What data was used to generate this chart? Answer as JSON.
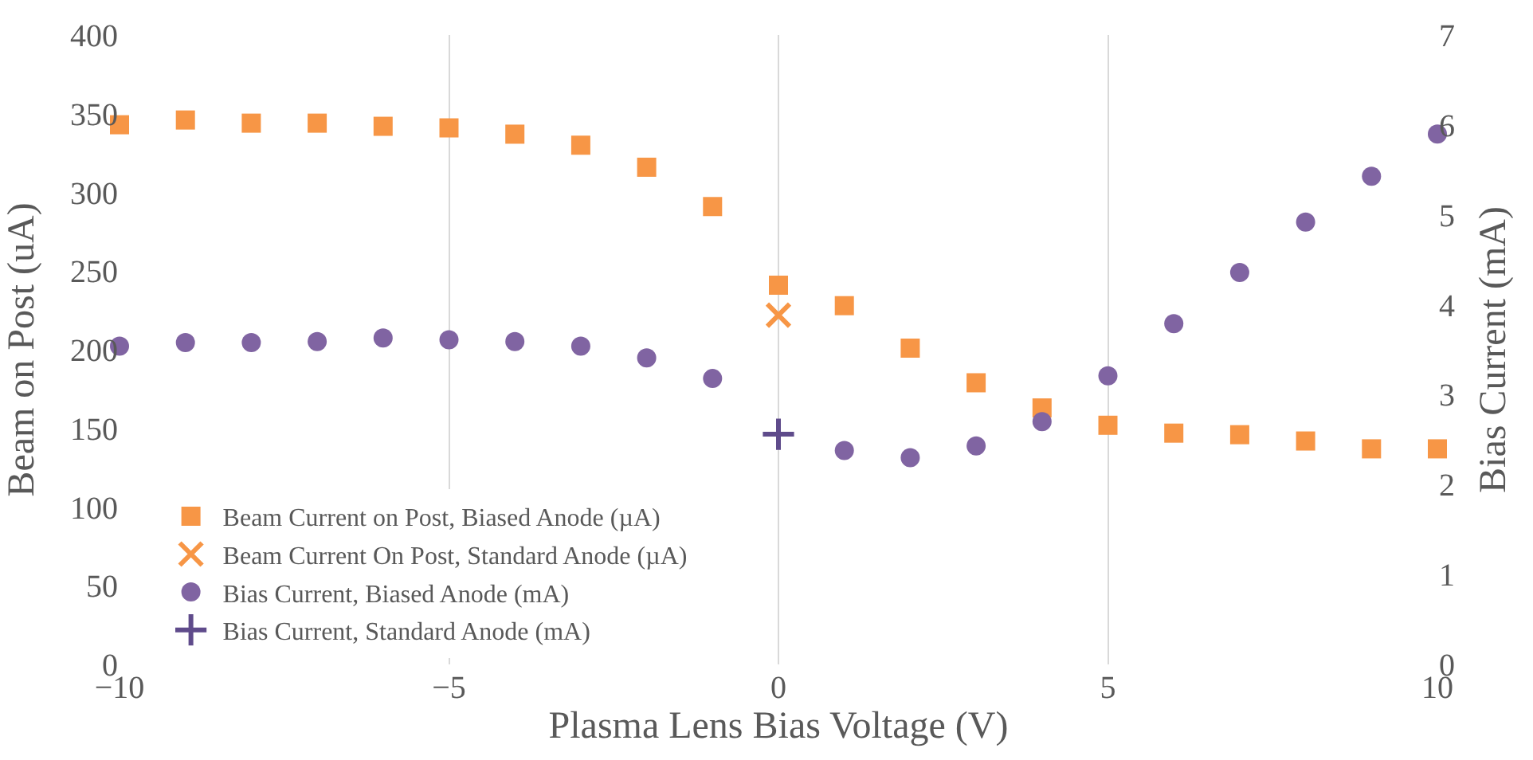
{
  "chart_data": {
    "type": "scatter",
    "xlabel": "Plasma Lens Bias Voltage (V)",
    "ylabel": "Beam on Post (uA)",
    "y2label": "Bias Current (mA)",
    "xlim": [
      -10,
      10
    ],
    "xticks": [
      -10,
      -5,
      0,
      5,
      10
    ],
    "ylim": [
      0,
      400
    ],
    "yticks": [
      0,
      50,
      100,
      150,
      200,
      250,
      300,
      350,
      400
    ],
    "y2lim": [
      0,
      7
    ],
    "y2ticks": [
      0,
      1,
      2,
      3,
      4,
      5,
      6,
      7
    ],
    "grid": "x",
    "legend": "bottom left",
    "series": [
      {
        "name": "Beam Current on Post, Biased Anode (µA)",
        "color": "#f79646",
        "marker": "square",
        "x": [
          -10,
          -9,
          -8,
          -7,
          -6,
          -5,
          -4,
          -3,
          -2,
          -1,
          0,
          1,
          2,
          3,
          4,
          5,
          6,
          7,
          8,
          9,
          10
        ],
        "values": [
          343,
          346,
          344,
          344,
          342,
          341,
          337,
          330,
          316,
          291,
          241,
          228,
          201,
          179,
          163,
          152,
          147,
          146,
          142,
          137,
          137
        ]
      },
      {
        "name": "Beam Current On Post, Standard Anode (µA)",
        "color": "#f79646",
        "marker": "x",
        "x": [
          0
        ],
        "values": [
          222
        ]
      },
      {
        "name": "Bias Current, Biased Anode (mA)",
        "color": "#8064a2",
        "marker": "circle",
        "axis": "y2",
        "x": [
          -10,
          -9,
          -8,
          -7,
          -6,
          -5,
          -4,
          -3,
          -2,
          -1,
          0,
          1,
          2,
          3,
          4,
          5,
          6,
          7,
          8,
          9,
          10
        ],
        "values": [
          3.54,
          3.58,
          3.58,
          3.59,
          3.63,
          3.61,
          3.59,
          3.54,
          3.41,
          3.18,
          null,
          2.38,
          2.3,
          2.43,
          2.7,
          3.21,
          3.79,
          4.36,
          4.92,
          5.43,
          5.9
        ]
      },
      {
        "name": "Bias Current, Standard Anode (mA)",
        "color": "#5f4b8b",
        "marker": "cross",
        "axis": "y2",
        "x": [
          0
        ],
        "values": [
          2.56
        ]
      }
    ]
  }
}
